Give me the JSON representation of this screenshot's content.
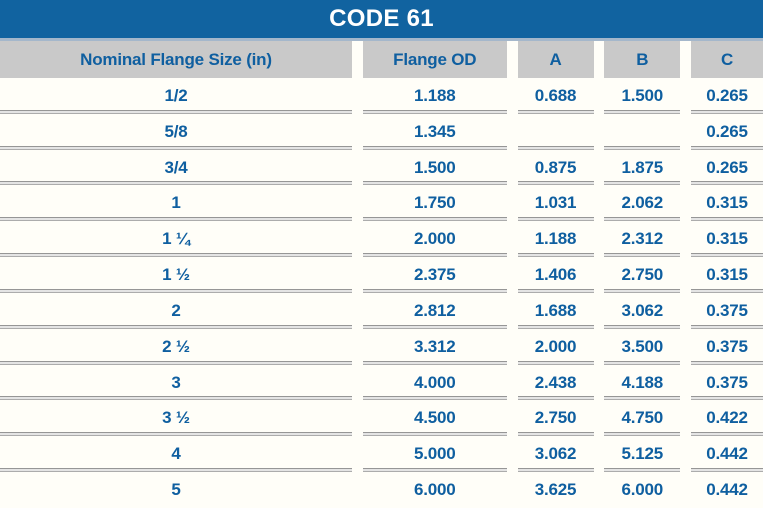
{
  "title": "CODE 61",
  "colors": {
    "banner_blue": "#1163A0",
    "text_blue": "#0F5FA0",
    "header_gray": "#C9C9C9",
    "page_background": "#FFFEF8"
  },
  "table": {
    "columns": [
      "Nominal Flange Size (in)",
      "Flange OD",
      "A",
      "B",
      "C"
    ],
    "rows": [
      [
        "1/2",
        "1.188",
        "0.688",
        "1.500",
        "0.265"
      ],
      [
        "5/8",
        "1.345",
        "",
        "",
        "0.265"
      ],
      [
        "3/4",
        "1.500",
        "0.875",
        "1.875",
        "0.265"
      ],
      [
        "1",
        "1.750",
        "1.031",
        "2.062",
        "0.315"
      ],
      [
        "1 ¼",
        "2.000",
        "1.188",
        "2.312",
        "0.315"
      ],
      [
        "1 ½",
        "2.375",
        "1.406",
        "2.750",
        "0.315"
      ],
      [
        "2",
        "2.812",
        "1.688",
        "3.062",
        "0.375"
      ],
      [
        "2 ½",
        "3.312",
        "2.000",
        "3.500",
        "0.375"
      ],
      [
        "3",
        "4.000",
        "2.438",
        "4.188",
        "0.375"
      ],
      [
        "3 ½",
        "4.500",
        "2.750",
        "4.750",
        "0.422"
      ],
      [
        "4",
        "5.000",
        "3.062",
        "5.125",
        "0.442"
      ],
      [
        "5",
        "6.000",
        "3.625",
        "6.000",
        "0.442"
      ]
    ]
  }
}
